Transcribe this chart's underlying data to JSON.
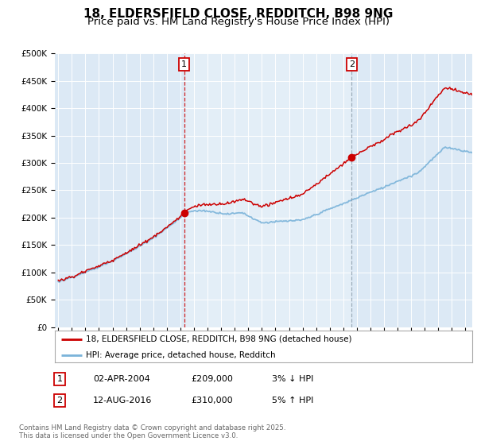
{
  "title": "18, ELDERSFIELD CLOSE, REDDITCH, B98 9NG",
  "subtitle": "Price paid vs. HM Land Registry's House Price Index (HPI)",
  "ylim": [
    0,
    500000
  ],
  "xlim_start": 1994.75,
  "xlim_end": 2025.5,
  "background_color": "#dce9f5",
  "fig_bg_color": "#ffffff",
  "hpi_color": "#7ab3d9",
  "price_color": "#cc0000",
  "vline1_color": "#cc0000",
  "vline2_color": "#8899aa",
  "vline1_x": 2004.27,
  "vline2_x": 2016.62,
  "sale1_price": 209000,
  "sale2_price": 310000,
  "legend_label_red": "18, ELDERSFIELD CLOSE, REDDITCH, B98 9NG (detached house)",
  "legend_label_blue": "HPI: Average price, detached house, Redditch",
  "annotation1_label": "1",
  "annotation2_label": "2",
  "table_rows": [
    [
      "1",
      "02-APR-2004",
      "£209,000",
      "3% ↓ HPI"
    ],
    [
      "2",
      "12-AUG-2016",
      "£310,000",
      "5% ↑ HPI"
    ]
  ],
  "footnote": "Contains HM Land Registry data © Crown copyright and database right 2025.\nThis data is licensed under the Open Government Licence v3.0.",
  "title_fontsize": 11,
  "subtitle_fontsize": 9.5
}
